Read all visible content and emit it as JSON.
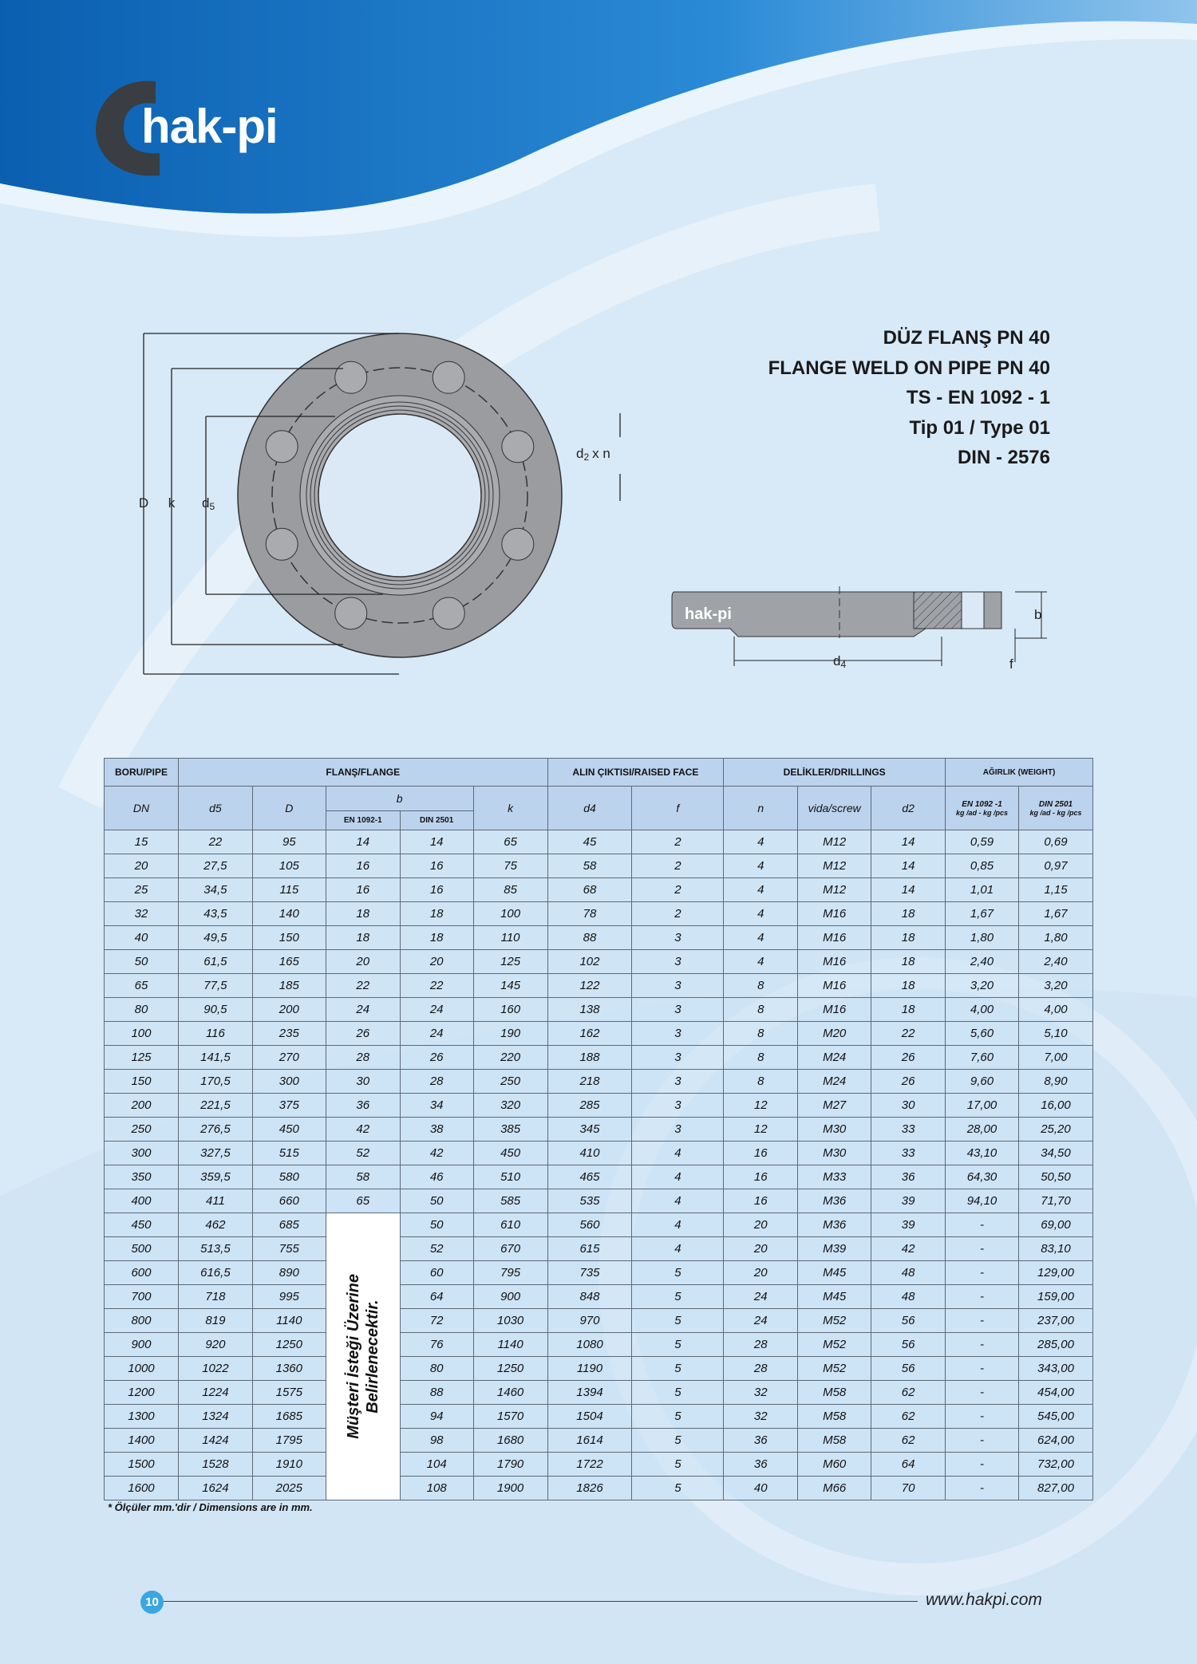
{
  "brand": {
    "logo_text": "hak-pi",
    "side_view_logo": "hak-pi",
    "colors": {
      "brand_blue": "#1a73c4",
      "header_blue": "#bcd3ee",
      "page_badge": "#3aa7e0"
    }
  },
  "titles": [
    "DÜZ FLANŞ PN 40",
    "FLANGE WELD ON PIPE PN 40",
    "TS - EN 1092 - 1",
    "Tip 01 / Type 01",
    "DIN - 2576"
  ],
  "drawing_labels": {
    "D": "D",
    "k": "k",
    "d5": "d",
    "d5_sub": "5",
    "d2xn": "d",
    "d2_sub": "2",
    "xn": "x n",
    "d4": "d",
    "d4_sub": "4",
    "b": "b",
    "f": "f"
  },
  "table": {
    "group_headers": {
      "pipe": "BORU/PIPE",
      "flange": "FLANŞ/FLANGE",
      "raised_face": "ALIN ÇIKTISI/RAISED FACE",
      "drillings": "DELİKLER/DRILLINGS",
      "weight": "AĞIRLIK (WEIGHT)"
    },
    "columns": {
      "dn": "DN",
      "d5": "d5",
      "D": "D",
      "b": "b",
      "b_en": "EN 1092-1",
      "b_din": "DIN 2501",
      "k": "k",
      "d4": "d4",
      "f": "f",
      "n": "n",
      "screw": "vida/screw",
      "d2": "d2",
      "w_en": "EN 1092 -1",
      "w_en_unit": "kg /ad - kg /pcs",
      "w_din": "DIN 2501",
      "w_din_unit": "kg /ad - kg /pcs"
    },
    "merged_note": [
      "Müşteri İsteği Üzerine",
      "Belirlenecektir."
    ],
    "rows": [
      [
        "15",
        "22",
        "95",
        "14",
        "14",
        "65",
        "45",
        "2",
        "4",
        "M12",
        "14",
        "0,59",
        "0,69"
      ],
      [
        "20",
        "27,5",
        "105",
        "16",
        "16",
        "75",
        "58",
        "2",
        "4",
        "M12",
        "14",
        "0,85",
        "0,97"
      ],
      [
        "25",
        "34,5",
        "115",
        "16",
        "16",
        "85",
        "68",
        "2",
        "4",
        "M12",
        "14",
        "1,01",
        "1,15"
      ],
      [
        "32",
        "43,5",
        "140",
        "18",
        "18",
        "100",
        "78",
        "2",
        "4",
        "M16",
        "18",
        "1,67",
        "1,67"
      ],
      [
        "40",
        "49,5",
        "150",
        "18",
        "18",
        "110",
        "88",
        "3",
        "4",
        "M16",
        "18",
        "1,80",
        "1,80"
      ],
      [
        "50",
        "61,5",
        "165",
        "20",
        "20",
        "125",
        "102",
        "3",
        "4",
        "M16",
        "18",
        "2,40",
        "2,40"
      ],
      [
        "65",
        "77,5",
        "185",
        "22",
        "22",
        "145",
        "122",
        "3",
        "8",
        "M16",
        "18",
        "3,20",
        "3,20"
      ],
      [
        "80",
        "90,5",
        "200",
        "24",
        "24",
        "160",
        "138",
        "3",
        "8",
        "M16",
        "18",
        "4,00",
        "4,00"
      ],
      [
        "100",
        "116",
        "235",
        "26",
        "24",
        "190",
        "162",
        "3",
        "8",
        "M20",
        "22",
        "5,60",
        "5,10"
      ],
      [
        "125",
        "141,5",
        "270",
        "28",
        "26",
        "220",
        "188",
        "3",
        "8",
        "M24",
        "26",
        "7,60",
        "7,00"
      ],
      [
        "150",
        "170,5",
        "300",
        "30",
        "28",
        "250",
        "218",
        "3",
        "8",
        "M24",
        "26",
        "9,60",
        "8,90"
      ],
      [
        "200",
        "221,5",
        "375",
        "36",
        "34",
        "320",
        "285",
        "3",
        "12",
        "M27",
        "30",
        "17,00",
        "16,00"
      ],
      [
        "250",
        "276,5",
        "450",
        "42",
        "38",
        "385",
        "345",
        "3",
        "12",
        "M30",
        "33",
        "28,00",
        "25,20"
      ],
      [
        "300",
        "327,5",
        "515",
        "52",
        "42",
        "450",
        "410",
        "4",
        "16",
        "M30",
        "33",
        "43,10",
        "34,50"
      ],
      [
        "350",
        "359,5",
        "580",
        "58",
        "46",
        "510",
        "465",
        "4",
        "16",
        "M33",
        "36",
        "64,30",
        "50,50"
      ],
      [
        "400",
        "411",
        "660",
        "65",
        "50",
        "585",
        "535",
        "4",
        "16",
        "M36",
        "39",
        "94,10",
        "71,70"
      ],
      [
        "450",
        "462",
        "685",
        null,
        "50",
        "610",
        "560",
        "4",
        "20",
        "M36",
        "39",
        "-",
        "69,00"
      ],
      [
        "500",
        "513,5",
        "755",
        null,
        "52",
        "670",
        "615",
        "4",
        "20",
        "M39",
        "42",
        "-",
        "83,10"
      ],
      [
        "600",
        "616,5",
        "890",
        null,
        "60",
        "795",
        "735",
        "5",
        "20",
        "M45",
        "48",
        "-",
        "129,00"
      ],
      [
        "700",
        "718",
        "995",
        null,
        "64",
        "900",
        "848",
        "5",
        "24",
        "M45",
        "48",
        "-",
        "159,00"
      ],
      [
        "800",
        "819",
        "1140",
        null,
        "72",
        "1030",
        "970",
        "5",
        "24",
        "M52",
        "56",
        "-",
        "237,00"
      ],
      [
        "900",
        "920",
        "1250",
        null,
        "76",
        "1140",
        "1080",
        "5",
        "28",
        "M52",
        "56",
        "-",
        "285,00"
      ],
      [
        "1000",
        "1022",
        "1360",
        null,
        "80",
        "1250",
        "1190",
        "5",
        "28",
        "M52",
        "56",
        "-",
        "343,00"
      ],
      [
        "1200",
        "1224",
        "1575",
        null,
        "88",
        "1460",
        "1394",
        "5",
        "32",
        "M58",
        "62",
        "-",
        "454,00"
      ],
      [
        "1300",
        "1324",
        "1685",
        null,
        "94",
        "1570",
        "1504",
        "5",
        "32",
        "M58",
        "62",
        "-",
        "545,00"
      ],
      [
        "1400",
        "1424",
        "1795",
        null,
        "98",
        "1680",
        "1614",
        "5",
        "36",
        "M58",
        "62",
        "-",
        "624,00"
      ],
      [
        "1500",
        "1528",
        "1910",
        null,
        "104",
        "1790",
        "1722",
        "5",
        "36",
        "M60",
        "64",
        "-",
        "732,00"
      ],
      [
        "1600",
        "1624",
        "2025",
        null,
        "108",
        "1900",
        "1826",
        "5",
        "40",
        "M66",
        "70",
        "-",
        "827,00"
      ]
    ]
  },
  "footnote": "* Ölçüler mm.'dir / Dimensions are in mm.",
  "footer": {
    "page_number": "10",
    "url": "www.hakpi.com"
  }
}
